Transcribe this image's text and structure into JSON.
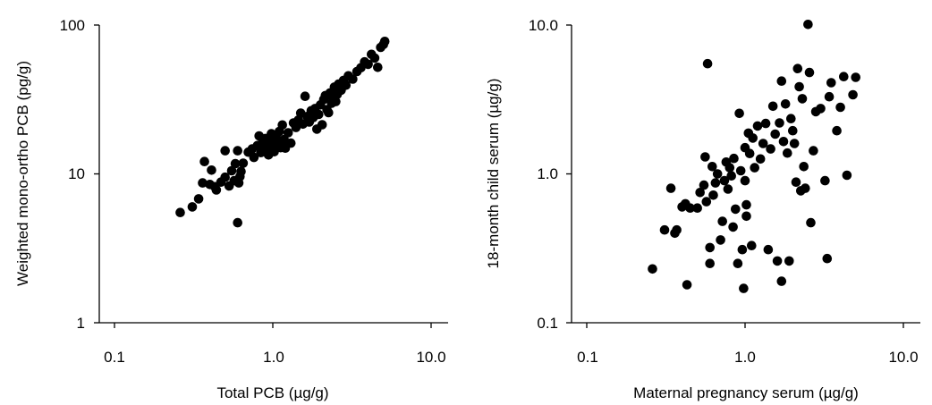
{
  "chart_data": [
    {
      "type": "scatter",
      "xlabel": "Total PCB (µg/g)",
      "ylabel": "Weighted mono-ortho PCB (pg/g)",
      "x_scale": "log",
      "y_scale": "log",
      "xlim": [
        0.1,
        10.0
      ],
      "ylim": [
        1,
        100
      ],
      "x_tick_labels": [
        "0.1",
        "1.0",
        "10.0"
      ],
      "y_tick_labels": [
        "1",
        "10",
        "100"
      ],
      "grid": false,
      "marker_color": "#000000",
      "series": [
        {
          "points": [
            [
              0.26,
              5.5
            ],
            [
              0.31,
              6.0
            ],
            [
              0.34,
              6.8
            ],
            [
              0.36,
              8.7
            ],
            [
              0.37,
              12.1
            ],
            [
              0.4,
              8.5
            ],
            [
              0.41,
              10.6
            ],
            [
              0.43,
              8.2
            ],
            [
              0.44,
              7.8
            ],
            [
              0.47,
              8.8
            ],
            [
              0.5,
              9.5
            ],
            [
              0.5,
              14.3
            ],
            [
              0.53,
              8.3
            ],
            [
              0.55,
              10.5
            ],
            [
              0.57,
              9.0
            ],
            [
              0.58,
              11.7
            ],
            [
              0.6,
              14.3
            ],
            [
              0.6,
              4.7
            ],
            [
              0.61,
              8.7
            ],
            [
              0.62,
              9.6
            ],
            [
              0.63,
              10.4
            ],
            [
              0.65,
              11.8
            ],
            [
              0.7,
              14.0
            ],
            [
              0.74,
              14.7
            ],
            [
              0.76,
              12.9
            ],
            [
              0.8,
              15.5
            ],
            [
              0.82,
              18.0
            ],
            [
              0.84,
              13.9
            ],
            [
              0.86,
              16.2
            ],
            [
              0.88,
              14.6
            ],
            [
              0.9,
              17.3
            ],
            [
              0.92,
              15.1
            ],
            [
              0.94,
              13.4
            ],
            [
              0.96,
              16.8
            ],
            [
              0.98,
              18.6
            ],
            [
              1.0,
              15.7
            ],
            [
              1.02,
              14.1
            ],
            [
              1.05,
              17.7
            ],
            [
              1.07,
              16.3
            ],
            [
              1.1,
              19.3
            ],
            [
              1.12,
              15.0
            ],
            [
              1.15,
              21.3
            ],
            [
              1.18,
              17.0
            ],
            [
              1.2,
              14.9
            ],
            [
              1.25,
              18.9
            ],
            [
              1.3,
              16.1
            ],
            [
              1.35,
              22.0
            ],
            [
              1.4,
              20.5
            ],
            [
              1.45,
              23.0
            ],
            [
              1.5,
              25.6
            ],
            [
              1.55,
              21.6
            ],
            [
              1.6,
              33.2
            ],
            [
              1.65,
              24.3
            ],
            [
              1.7,
              22.3
            ],
            [
              1.75,
              26.6
            ],
            [
              1.8,
              23.9
            ],
            [
              1.85,
              27.5
            ],
            [
              1.9,
              20.0
            ],
            [
              1.95,
              25.1
            ],
            [
              2.0,
              29.1
            ],
            [
              2.05,
              21.4
            ],
            [
              2.1,
              31.6
            ],
            [
              2.15,
              33.6
            ],
            [
              2.2,
              27.0
            ],
            [
              2.25,
              25.8
            ],
            [
              2.3,
              35.0
            ],
            [
              2.35,
              29.8
            ],
            [
              2.4,
              32.0
            ],
            [
              2.45,
              38.3
            ],
            [
              2.5,
              30.6
            ],
            [
              2.55,
              34.2
            ],
            [
              2.6,
              40.1
            ],
            [
              2.7,
              36.5
            ],
            [
              2.8,
              42.5
            ],
            [
              2.9,
              39.4
            ],
            [
              3.0,
              45.6
            ],
            [
              3.2,
              43.3
            ],
            [
              3.4,
              48.7
            ],
            [
              3.6,
              51.6
            ],
            [
              3.8,
              56.6
            ],
            [
              4.0,
              54.5
            ],
            [
              4.2,
              63.5
            ],
            [
              4.4,
              60.0
            ],
            [
              4.6,
              52.0
            ],
            [
              4.8,
              70.8
            ],
            [
              5.0,
              74.1
            ],
            [
              5.1,
              77.6
            ]
          ]
        }
      ]
    },
    {
      "type": "scatter",
      "xlabel": "Maternal pregnancy serum (µg/g)",
      "ylabel": "18-month child serum (µg/g)",
      "x_scale": "log",
      "y_scale": "log",
      "xlim": [
        0.1,
        10.0
      ],
      "ylim": [
        0.1,
        10.0
      ],
      "x_tick_labels": [
        "0.1",
        "1.0",
        "10.0"
      ],
      "y_tick_labels": [
        "0.1",
        "1.0",
        "10.0"
      ],
      "grid": false,
      "marker_color": "#000000",
      "series": [
        {
          "points": [
            [
              0.26,
              0.23
            ],
            [
              0.31,
              0.42
            ],
            [
              0.34,
              0.8
            ],
            [
              0.36,
              0.4
            ],
            [
              0.37,
              0.42
            ],
            [
              0.4,
              0.6
            ],
            [
              0.42,
              0.63
            ],
            [
              0.43,
              0.18
            ],
            [
              0.45,
              0.59
            ],
            [
              0.5,
              0.59
            ],
            [
              0.52,
              0.75
            ],
            [
              0.55,
              0.84
            ],
            [
              0.56,
              1.3
            ],
            [
              0.57,
              0.65
            ],
            [
              0.58,
              5.5
            ],
            [
              0.6,
              0.25
            ],
            [
              0.6,
              0.32
            ],
            [
              0.62,
              1.12
            ],
            [
              0.63,
              0.72
            ],
            [
              0.65,
              0.87
            ],
            [
              0.67,
              1.0
            ],
            [
              0.7,
              0.36
            ],
            [
              0.72,
              0.48
            ],
            [
              0.74,
              0.9
            ],
            [
              0.76,
              1.2
            ],
            [
              0.78,
              0.79
            ],
            [
              0.8,
              1.1
            ],
            [
              0.82,
              0.97
            ],
            [
              0.84,
              0.44
            ],
            [
              0.85,
              1.27
            ],
            [
              0.87,
              0.58
            ],
            [
              0.9,
              0.25
            ],
            [
              0.92,
              2.55
            ],
            [
              0.94,
              1.05
            ],
            [
              0.96,
              0.31
            ],
            [
              0.98,
              0.17
            ],
            [
              1.0,
              1.5
            ],
            [
              1.0,
              0.9
            ],
            [
              1.02,
              0.62
            ],
            [
              1.02,
              0.52
            ],
            [
              1.05,
              1.88
            ],
            [
              1.07,
              1.37
            ],
            [
              1.1,
              0.33
            ],
            [
              1.12,
              1.74
            ],
            [
              1.15,
              1.1
            ],
            [
              1.2,
              2.1
            ],
            [
              1.25,
              1.26
            ],
            [
              1.3,
              1.6
            ],
            [
              1.35,
              2.18
            ],
            [
              1.4,
              0.31
            ],
            [
              1.45,
              1.47
            ],
            [
              1.5,
              2.85
            ],
            [
              1.55,
              1.85
            ],
            [
              1.6,
              0.26
            ],
            [
              1.65,
              2.2
            ],
            [
              1.7,
              4.2
            ],
            [
              1.7,
              0.19
            ],
            [
              1.75,
              1.65
            ],
            [
              1.8,
              2.95
            ],
            [
              1.85,
              1.38
            ],
            [
              1.9,
              0.26
            ],
            [
              1.95,
              2.35
            ],
            [
              2.0,
              1.95
            ],
            [
              2.05,
              1.6
            ],
            [
              2.1,
              0.88
            ],
            [
              2.15,
              5.1
            ],
            [
              2.2,
              3.85
            ],
            [
              2.25,
              0.77
            ],
            [
              2.3,
              3.2
            ],
            [
              2.35,
              1.12
            ],
            [
              2.4,
              0.8
            ],
            [
              2.5,
              10.1
            ],
            [
              2.55,
              4.8
            ],
            [
              2.6,
              0.47
            ],
            [
              2.7,
              1.43
            ],
            [
              2.8,
              2.62
            ],
            [
              3.0,
              2.75
            ],
            [
              3.2,
              0.9
            ],
            [
              3.3,
              0.27
            ],
            [
              3.4,
              3.3
            ],
            [
              3.5,
              4.1
            ],
            [
              3.8,
              1.95
            ],
            [
              4.0,
              2.8
            ],
            [
              4.2,
              4.5
            ],
            [
              4.4,
              0.98
            ],
            [
              4.8,
              3.4
            ],
            [
              5.0,
              4.45
            ]
          ]
        }
      ]
    }
  ]
}
